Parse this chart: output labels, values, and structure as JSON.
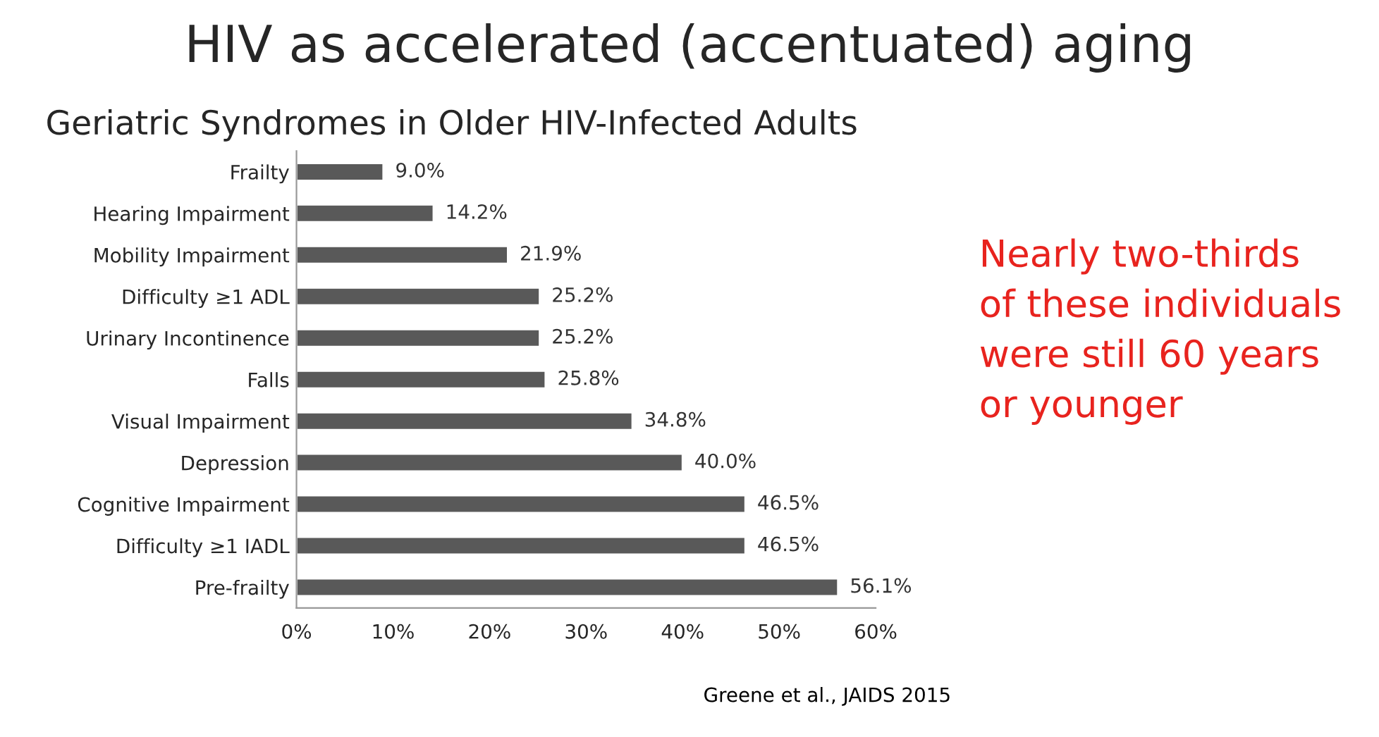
{
  "chart_data": {
    "type": "bar",
    "orientation": "horizontal",
    "title": "HIV as accelerated (accentuated) aging",
    "subtitle": "Geriatric Syndromes in Older HIV-Infected Adults",
    "categories": [
      "Frailty",
      "Hearing Impairment",
      "Mobility Impairment",
      "Difficulty ≥1 ADL",
      "Urinary Incontinence",
      "Falls",
      "Visual Impairment",
      "Depression",
      "Cognitive Impairment",
      "Difficulty ≥1 IADL",
      "Pre-frailty"
    ],
    "values": [
      9.0,
      14.2,
      21.9,
      25.2,
      25.2,
      25.8,
      34.8,
      40.0,
      46.5,
      46.5,
      56.1
    ],
    "value_labels": [
      "9.0%",
      "14.2%",
      "21.9%",
      "25.2%",
      "25.2%",
      "25.8%",
      "34.8%",
      "40.0%",
      "46.5%",
      "46.5%",
      "56.1%"
    ],
    "color": "#595959",
    "xlim": [
      0,
      60
    ],
    "xticks": [
      {
        "value": 0,
        "label": "0%"
      },
      {
        "value": 10,
        "label": "10%"
      },
      {
        "value": 20,
        "label": "20%"
      },
      {
        "value": 30,
        "label": "30%"
      },
      {
        "value": 40,
        "label": "40%"
      },
      {
        "value": 50,
        "label": "50%"
      },
      {
        "value": 60,
        "label": "60%"
      }
    ],
    "grid": false,
    "legend": false,
    "annotations": [
      "Nearly two-thirds\nof these individuals\nwere still 60 years\nor younger",
      "Greene et al., JAIDS 2015"
    ]
  }
}
